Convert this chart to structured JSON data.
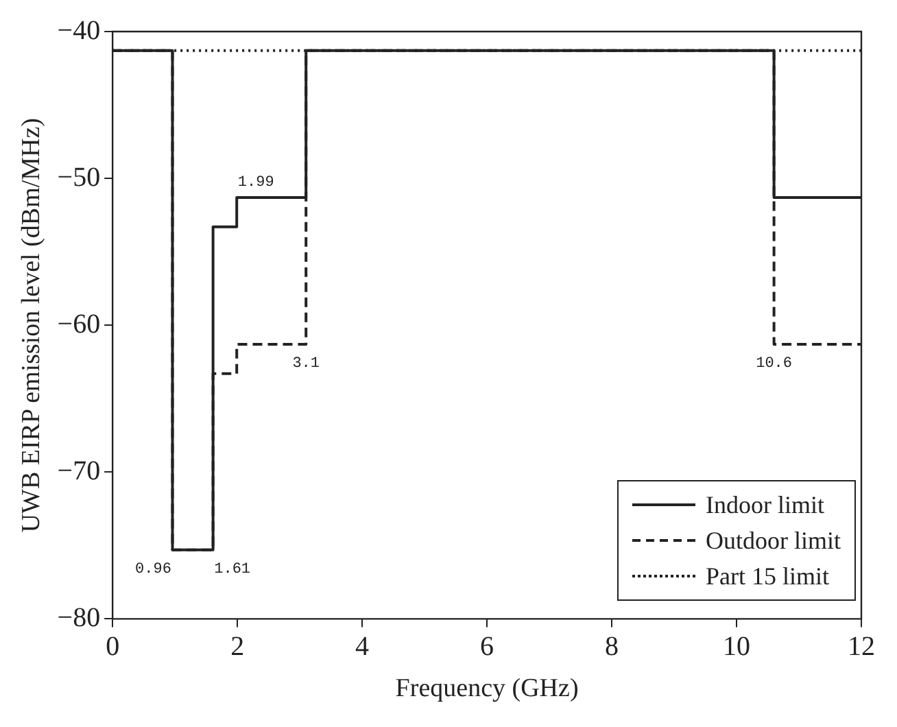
{
  "chart_data": {
    "type": "step",
    "xlabel": "Frequency (GHz)",
    "ylabel": "UWB EIRP emission level (dBm/MHz)",
    "xlim": [
      0,
      12
    ],
    "xticks": [
      0,
      2,
      4,
      6,
      8,
      10,
      12
    ],
    "ylim": [
      -80,
      -40
    ],
    "yticks": [
      -80,
      -70,
      -60,
      -50,
      -40
    ],
    "grid": false,
    "legend": "bottom right",
    "series": [
      {
        "name": "Indoor limit",
        "color": "#222222",
        "line_style": "solid",
        "x": [
          0,
          0.96,
          1.61,
          1.99,
          3.1,
          10.6,
          12
        ],
        "values": [
          -41.3,
          -75.3,
          -53.3,
          -51.3,
          -41.3,
          -51.3,
          -51.3
        ]
      },
      {
        "name": "Outdoor limit",
        "color": "#222222",
        "line_style": "dashed",
        "x": [
          0,
          0.96,
          1.61,
          1.99,
          3.1,
          10.6,
          12
        ],
        "values": [
          -41.3,
          -75.3,
          -63.3,
          -61.3,
          -41.3,
          -61.3,
          -61.3
        ]
      },
      {
        "name": "Part 15 limit",
        "color": "#222222",
        "line_style": "dotted",
        "x": [
          0,
          12
        ],
        "values": [
          -41.3,
          -41.3
        ]
      }
    ],
    "annotations": [
      {
        "text": "0.96",
        "x": 0.96,
        "y": -75.3
      },
      {
        "text": "1.61",
        "x": 1.61,
        "y": -75.3
      },
      {
        "text": "1.99",
        "x": 1.99,
        "y": -51.3
      },
      {
        "text": "3.1",
        "x": 3.1,
        "y": -61.3
      },
      {
        "text": "10.6",
        "x": 10.6,
        "y": -61.3
      }
    ]
  }
}
